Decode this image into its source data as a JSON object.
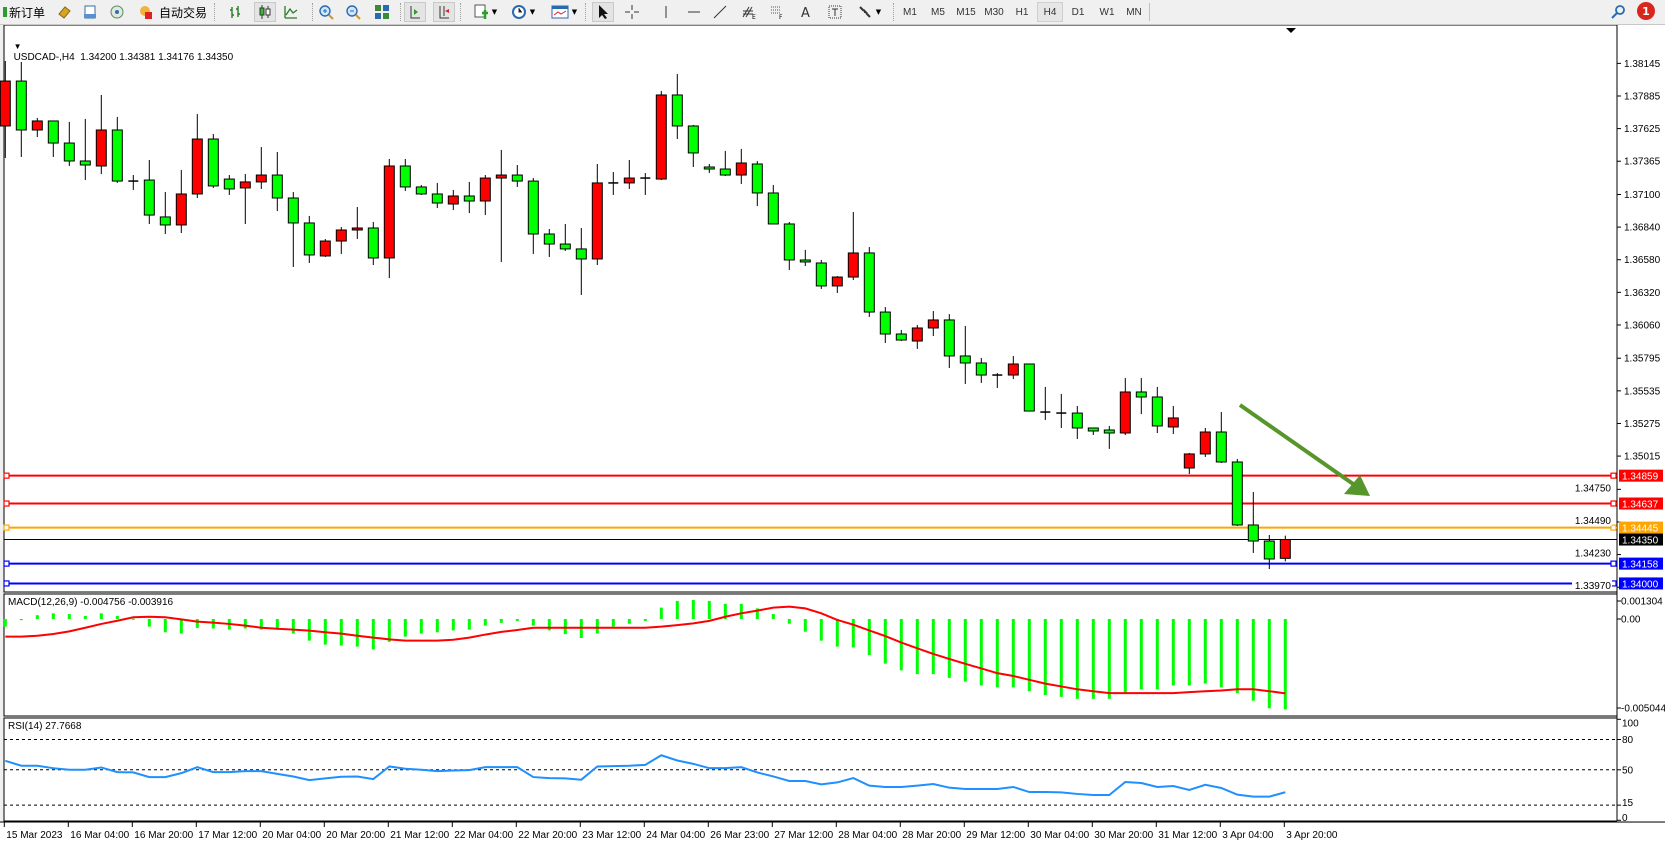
{
  "toolbar": {
    "new_order_label": "新订单",
    "auto_trading_label": "自动交易",
    "timeframes": [
      "M1",
      "M5",
      "M15",
      "M30",
      "H1",
      "H4",
      "D1",
      "W1",
      "MN"
    ],
    "active_timeframe": "H4",
    "notification_count": "1",
    "icons": [
      "new-order-icon",
      "market-watch-icon",
      "data-window-icon",
      "navigator-icon",
      "signals-icon",
      "auto-trading-icon",
      "bar-chart-icon",
      "candlestick-icon",
      "line-chart-icon",
      "zoom-in-icon",
      "zoom-out-icon",
      "tile-windows-icon",
      "chart-shift-icon",
      "autoscroll-icon",
      "indicators-icon",
      "periods-icon",
      "templates-icon",
      "cursor-icon",
      "crosshair-icon",
      "vertical-line-icon",
      "horizontal-line-icon",
      "trendline-icon",
      "fibonacci-icon",
      "fibonacci-fan-icon",
      "text-icon",
      "text-label-icon",
      "arrows-icon",
      "search-icon",
      "notification-icon"
    ]
  },
  "chart": {
    "symbol": "USDCAD-,H4",
    "ohlc": "1.34200 1.34381 1.34176 1.34350",
    "title": "USDCAD-,H4  1.34200 1.34381 1.34176 1.34350"
  },
  "chart_data": [
    {
      "type": "candlestick",
      "symbol": "USDCAD-",
      "timeframe": "H4",
      "colors": {
        "bull": "#ff0000",
        "bear": "#00ff00",
        "outline": "#000000"
      },
      "candles": [
        [
          1.37646,
          1.38164,
          1.37391,
          1.38004
        ],
        [
          1.38004,
          1.38156,
          1.37399,
          1.37614
        ],
        [
          1.37614,
          1.3771,
          1.37558,
          1.37686
        ],
        [
          1.37686,
          1.37686,
          1.37399,
          1.3751
        ],
        [
          1.3751,
          1.37678,
          1.37327,
          1.37367
        ],
        [
          1.37367,
          1.37702,
          1.37215,
          1.37335
        ],
        [
          1.37327,
          1.37893,
          1.37263,
          1.37614
        ],
        [
          1.37614,
          1.37718,
          1.37192,
          1.37207
        ],
        [
          1.37207,
          1.37255,
          1.37136,
          1.37207
        ],
        [
          1.37215,
          1.37375,
          1.36865,
          1.36936
        ],
        [
          1.36921,
          1.3712,
          1.36785,
          1.36857
        ],
        [
          1.36857,
          1.37295,
          1.36793,
          1.37104
        ],
        [
          1.37104,
          1.37741,
          1.37072,
          1.37542
        ],
        [
          1.37542,
          1.37582,
          1.37152,
          1.37168
        ],
        [
          1.37223,
          1.37255,
          1.37096,
          1.37144
        ],
        [
          1.37152,
          1.37263,
          1.36865,
          1.372
        ],
        [
          1.372,
          1.37478,
          1.37144,
          1.37255
        ],
        [
          1.37255,
          1.37439,
          1.36968,
          1.37072
        ],
        [
          1.37072,
          1.3712,
          1.36522,
          1.36873
        ],
        [
          1.36873,
          1.36929,
          1.36554,
          1.36618
        ],
        [
          1.3661,
          1.36745,
          1.36602,
          1.36729
        ],
        [
          1.36729,
          1.36841,
          1.36626,
          1.36817
        ],
        [
          1.36817,
          1.37,
          1.36745,
          1.36833
        ],
        [
          1.36833,
          1.36881,
          1.36538,
          1.36594
        ],
        [
          1.36594,
          1.37383,
          1.36434,
          1.37327
        ],
        [
          1.37327,
          1.37383,
          1.37128,
          1.3716
        ],
        [
          1.3716,
          1.37176,
          1.37096,
          1.37104
        ],
        [
          1.37104,
          1.37192,
          1.36992,
          1.37032
        ],
        [
          1.37024,
          1.37136,
          1.36976,
          1.37088
        ],
        [
          1.37088,
          1.372,
          1.36952,
          1.37048
        ],
        [
          1.37048,
          1.37255,
          1.36936,
          1.37231
        ],
        [
          1.37231,
          1.37455,
          1.36562,
          1.37255
        ],
        [
          1.37255,
          1.37335,
          1.3716,
          1.37207
        ],
        [
          1.37207,
          1.37231,
          1.36626,
          1.36785
        ],
        [
          1.36785,
          1.36825,
          1.36602,
          1.36705
        ],
        [
          1.36705,
          1.36865,
          1.3665,
          1.36666
        ],
        [
          1.36666,
          1.36833,
          1.36299,
          1.36586
        ],
        [
          1.36586,
          1.37343,
          1.36538,
          1.37192
        ],
        [
          1.37192,
          1.37279,
          1.37096,
          1.37192
        ],
        [
          1.37192,
          1.37375,
          1.37144,
          1.37231
        ],
        [
          1.37231,
          1.37271,
          1.37096,
          1.37231
        ],
        [
          1.37223,
          1.37925,
          1.37215,
          1.37893
        ],
        [
          1.37893,
          1.3806,
          1.37542,
          1.37646
        ],
        [
          1.37646,
          1.37654,
          1.37319,
          1.37431
        ],
        [
          1.37319,
          1.37343,
          1.37271,
          1.37303
        ],
        [
          1.37303,
          1.37447,
          1.37247,
          1.37255
        ],
        [
          1.37255,
          1.37463,
          1.37184,
          1.37351
        ],
        [
          1.37343,
          1.37367,
          1.37008,
          1.37112
        ],
        [
          1.37112,
          1.37176,
          1.36865,
          1.36865
        ],
        [
          1.36865,
          1.36881,
          1.36498,
          1.36578
        ],
        [
          1.36578,
          1.36658,
          1.3653,
          1.36562
        ],
        [
          1.36554,
          1.36578,
          1.36347,
          1.36371
        ],
        [
          1.36371,
          1.3645,
          1.36315,
          1.36442
        ],
        [
          1.36442,
          1.3696,
          1.36418,
          1.36634
        ],
        [
          1.36634,
          1.36681,
          1.36124,
          1.36163
        ],
        [
          1.36163,
          1.36203,
          1.35916,
          1.35988
        ],
        [
          1.35988,
          1.3602,
          1.35932,
          1.3594
        ],
        [
          1.35932,
          1.3606,
          1.35869,
          1.36036
        ],
        [
          1.36036,
          1.36171,
          1.35972,
          1.361
        ],
        [
          1.361,
          1.36147,
          1.35717,
          1.35813
        ],
        [
          1.35813,
          1.36052,
          1.3559,
          1.35757
        ],
        [
          1.35757,
          1.35797,
          1.35598,
          1.35661
        ],
        [
          1.35661,
          1.35677,
          1.35558,
          1.35661
        ],
        [
          1.35661,
          1.35813,
          1.35629,
          1.35749
        ],
        [
          1.35749,
          1.35749,
          1.35374,
          1.35374
        ],
        [
          1.35366,
          1.35566,
          1.35303,
          1.35366
        ],
        [
          1.35358,
          1.3551,
          1.35239,
          1.35358
        ],
        [
          1.35358,
          1.35414,
          1.35151,
          1.35239
        ],
        [
          1.35239,
          1.35239,
          1.35183,
          1.35215
        ],
        [
          1.35223,
          1.35255,
          1.35072,
          1.35199
        ],
        [
          1.35199,
          1.35637,
          1.35183,
          1.35526
        ],
        [
          1.35526,
          1.35637,
          1.3535,
          1.35486
        ],
        [
          1.35486,
          1.35566,
          1.35199,
          1.35255
        ],
        [
          1.35247,
          1.35414,
          1.35191,
          1.35319
        ],
        [
          1.3492,
          1.3504,
          1.34872,
          1.35032
        ],
        [
          1.35032,
          1.35239,
          1.35008,
          1.35207
        ],
        [
          1.35207,
          1.35366,
          1.3496,
          1.34968
        ],
        [
          1.34968,
          1.34992,
          1.34458,
          1.34466
        ],
        [
          1.34466,
          1.34729,
          1.34243,
          1.34338
        ],
        [
          1.34338,
          1.34386,
          1.34115,
          1.34195
        ],
        [
          1.342,
          1.34381,
          1.34176,
          1.3435
        ]
      ],
      "price_ticks": [
        "1.38145",
        "1.37885",
        "1.37625",
        "1.37365",
        "1.37100",
        "1.36840",
        "1.36580",
        "1.36320",
        "1.36060",
        "1.35795",
        "1.35535",
        "1.35275",
        "1.35015",
        "1.34750",
        "1.34490",
        "1.34230",
        "1.33970"
      ],
      "levels": [
        {
          "price": "1.34859",
          "color": "#ff0000"
        },
        {
          "price": "1.34637",
          "color": "#ff0000"
        },
        {
          "price": "1.34445",
          "color": "#ffa500"
        },
        {
          "price": "1.34158",
          "color": "#0000ff"
        },
        {
          "price": "1.34000",
          "color": "#0000ff"
        }
      ],
      "bid": {
        "price": "1.34350",
        "color": "#000000"
      },
      "time_labels": [
        "15 Mar 2023",
        "16 Mar 04:00",
        "16 Mar 20:00",
        "17 Mar 12:00",
        "20 Mar 04:00",
        "20 Mar 20:00",
        "21 Mar 12:00",
        "22 Mar 04:00",
        "22 Mar 20:00",
        "23 Mar 12:00",
        "24 Mar 04:00",
        "26 Mar 23:00",
        "27 Mar 12:00",
        "28 Mar 04:00",
        "28 Mar 20:00",
        "29 Mar 12:00",
        "30 Mar 04:00",
        "30 Mar 20:00",
        "31 Mar 12:00",
        "3 Apr 04:00",
        "3 Apr 20:00"
      ],
      "arrow_color": "#56962a"
    },
    {
      "type": "bar+line",
      "title": "MACD(12,26,9) -0.004756 -0.003916",
      "y_ticks": [
        "0.001304",
        "0.00",
        "-0.005044"
      ],
      "ylim": [
        -0.005044,
        0.001304
      ],
      "colors": {
        "main": "#00ff00",
        "signal": "#ff0000"
      },
      "main": [
        -0.0004,
        -5e-05,
        0.0002,
        0.0003,
        0.00026,
        0.00016,
        0.0003,
        0.00016,
        2e-05,
        -0.0004,
        -0.0007,
        -0.00077,
        -0.00047,
        -0.0005,
        -0.00056,
        -0.0005,
        -0.00056,
        -0.00056,
        -0.00077,
        -0.00114,
        -0.00135,
        -0.0014,
        -0.00145,
        -0.0016,
        -0.0012,
        -0.00093,
        -0.00077,
        -0.0007,
        -0.0006,
        -0.00056,
        -0.00035,
        -0.0002,
        -0.0001,
        -0.00035,
        -0.0006,
        -0.0008,
        -0.001,
        -0.00077,
        -0.0004,
        -0.00025,
        -0.0001,
        0.0006,
        0.00095,
        0.001,
        0.00095,
        0.0008,
        0.0008,
        0.00056,
        0.00026,
        -0.00025,
        -0.00067,
        -0.00114,
        -0.00145,
        -0.0015,
        -0.0019,
        -0.00235,
        -0.0027,
        -0.0029,
        -0.0029,
        -0.0031,
        -0.0033,
        -0.0035,
        -0.0036,
        -0.0036,
        -0.0038,
        -0.004,
        -0.0041,
        -0.0042,
        -0.0042,
        -0.0042,
        -0.0039,
        -0.0037,
        -0.0037,
        -0.0035,
        -0.0035,
        -0.0034,
        -0.0036,
        -0.0039,
        -0.0043,
        -0.0047,
        -0.004756
      ],
      "signal": [
        -0.00093,
        -0.00093,
        -0.00088,
        -0.00079,
        -0.00065,
        -0.00046,
        -0.00026,
        -9e-05,
        9e-05,
        0.00012,
        9e-05,
        -2e-05,
        -0.00014,
        -0.00019,
        -0.00026,
        -0.00035,
        -0.00046,
        -0.00051,
        -0.00056,
        -0.00061,
        -0.0007,
        -0.00077,
        -0.00088,
        -0.00098,
        -0.00107,
        -0.00114,
        -0.00114,
        -0.00114,
        -0.00109,
        -0.00098,
        -0.00082,
        -0.00068,
        -0.00058,
        -0.00046,
        -0.00046,
        -0.00046,
        -0.00046,
        -0.00046,
        -0.00046,
        -0.00046,
        -0.00046,
        -0.0004,
        -0.00032,
        -0.00023,
        -0.0001,
        0.00012,
        0.0003,
        0.00044,
        0.0006,
        0.00065,
        0.00056,
        0.0003,
        -5e-05,
        -0.0003,
        -0.0006,
        -0.0009,
        -0.00124,
        -0.00154,
        -0.00184,
        -0.0021,
        -0.00236,
        -0.0026,
        -0.00285,
        -0.003,
        -0.0032,
        -0.0034,
        -0.00355,
        -0.0037,
        -0.0038,
        -0.0039,
        -0.0039,
        -0.0039,
        -0.0039,
        -0.0039,
        -0.00385,
        -0.0038,
        -0.00376,
        -0.0037,
        -0.0037,
        -0.0038,
        -0.003916
      ]
    },
    {
      "type": "line",
      "title": "RSI(14) 27.7668",
      "y_ticks": [
        "100",
        "80",
        "50",
        "15",
        "0"
      ],
      "levels": [
        80,
        50,
        15
      ],
      "ylim": [
        0,
        100
      ],
      "color": "#1e90ff",
      "values": [
        58.9,
        54,
        54,
        51.6,
        50,
        50,
        52.3,
        47.7,
        47.4,
        42.8,
        42.8,
        46.7,
        52.6,
        47.7,
        47.7,
        48.7,
        48.7,
        46,
        43.4,
        39.8,
        41.5,
        43.1,
        43.4,
        40.8,
        53.3,
        51,
        50,
        48.7,
        49.3,
        49.7,
        52.6,
        52.6,
        52.6,
        42.8,
        41.8,
        41.5,
        40.2,
        53.3,
        53.6,
        54,
        54.9,
        64.4,
        59.2,
        55.9,
        51.6,
        51.6,
        52.6,
        47.4,
        43.4,
        38.9,
        38.9,
        35.6,
        37.5,
        41.8,
        34.3,
        33,
        33,
        34.3,
        35.9,
        32.3,
        31,
        31,
        31,
        33,
        28,
        28,
        27.7,
        26.1,
        25,
        25,
        37.9,
        36.9,
        33,
        33.9,
        30,
        35.2,
        32,
        25.4,
        23.4,
        23.4,
        27.7668
      ]
    }
  ]
}
